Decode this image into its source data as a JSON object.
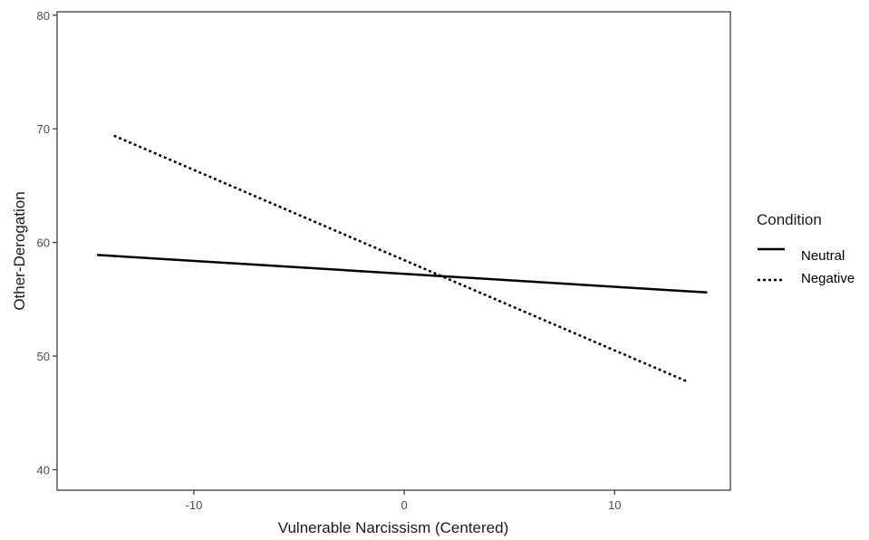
{
  "chart_data": {
    "type": "line",
    "xlabel": "Vulnerable Narcissism (Centered)",
    "ylabel": "Other-Derogation",
    "xlim": [
      -16.5,
      15.5
    ],
    "ylim": [
      38.2,
      80.3
    ],
    "x_ticks": [
      -10,
      0,
      10
    ],
    "x_tick_labels": [
      "-10",
      "0",
      "10"
    ],
    "y_ticks": [
      40,
      50,
      60,
      70,
      80
    ],
    "y_tick_labels": [
      "40",
      "50",
      "60",
      "70",
      "80"
    ],
    "grid": false,
    "legend": {
      "title": "Condition",
      "position": "right"
    },
    "series": [
      {
        "name": "Neutral",
        "style": "solid",
        "x": [
          -14.6,
          14.4
        ],
        "y": [
          58.9,
          55.6
        ]
      },
      {
        "name": "Negative",
        "style": "dotted",
        "x": [
          -13.8,
          13.4
        ],
        "y": [
          69.4,
          47.8
        ]
      }
    ]
  }
}
